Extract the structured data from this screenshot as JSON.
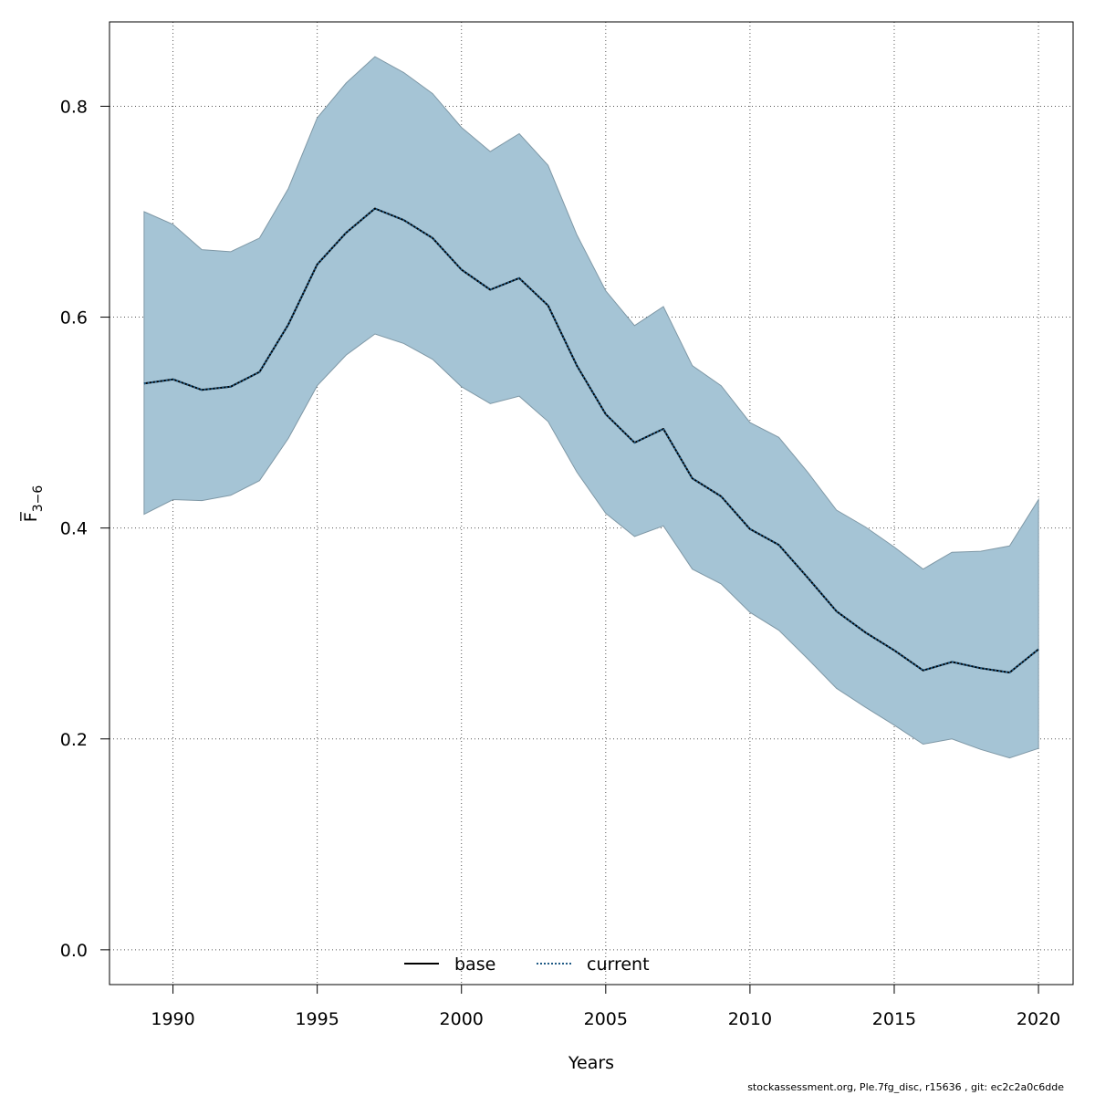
{
  "chart_data": {
    "type": "line",
    "xlabel": "Years",
    "ylabel": "F̅",
    "ylabel_subscript": "3−6",
    "xlim": [
      1987.8,
      2021.2
    ],
    "ylim": [
      -0.033,
      0.88
    ],
    "x_ticks": [
      1990,
      1995,
      2000,
      2005,
      2010,
      2015,
      2020
    ],
    "y_ticks": [
      0.0,
      0.2,
      0.4,
      0.6,
      0.8
    ],
    "y_tick_labels": [
      "0.0",
      "0.2",
      "0.4",
      "0.6",
      "0.8"
    ],
    "grid": true,
    "legend_position": "bottom",
    "legend": [
      {
        "label": "base",
        "style": "solid",
        "color": "#000000"
      },
      {
        "label": "current",
        "style": "dotted",
        "color": "#1f5a85"
      }
    ],
    "x": [
      1989,
      1990,
      1991,
      1992,
      1993,
      1994,
      1995,
      1996,
      1997,
      1998,
      1999,
      2000,
      2001,
      2002,
      2003,
      2004,
      2005,
      2006,
      2007,
      2008,
      2009,
      2010,
      2011,
      2012,
      2013,
      2014,
      2015,
      2016,
      2017,
      2018,
      2019,
      2020
    ],
    "series": [
      {
        "name": "current",
        "values": [
          0.537,
          0.541,
          0.531,
          0.534,
          0.548,
          0.593,
          0.65,
          0.68,
          0.703,
          0.692,
          0.675,
          0.645,
          0.626,
          0.637,
          0.611,
          0.554,
          0.508,
          0.481,
          0.494,
          0.447,
          0.43,
          0.399,
          0.384,
          0.353,
          0.321,
          0.301,
          0.284,
          0.265,
          0.273,
          0.267,
          0.263,
          0.285
        ]
      },
      {
        "name": "base",
        "values": [
          0.537,
          0.541,
          0.531,
          0.534,
          0.548,
          0.593,
          0.65,
          0.68,
          0.703,
          0.692,
          0.675,
          0.645,
          0.626,
          0.637,
          0.611,
          0.554,
          0.508,
          0.481,
          0.494,
          0.447,
          0.43,
          0.399,
          0.384,
          0.353,
          0.321,
          0.301,
          0.284,
          0.265,
          0.273,
          0.267,
          0.263,
          0.285
        ]
      }
    ],
    "band": {
      "lower": [
        0.413,
        0.427,
        0.426,
        0.431,
        0.445,
        0.485,
        0.535,
        0.564,
        0.584,
        0.575,
        0.56,
        0.534,
        0.518,
        0.525,
        0.501,
        0.453,
        0.414,
        0.392,
        0.402,
        0.361,
        0.347,
        0.32,
        0.303,
        0.276,
        0.248,
        0.23,
        0.213,
        0.195,
        0.2,
        0.19,
        0.182,
        0.191
      ],
      "upper": [
        0.7,
        0.688,
        0.664,
        0.662,
        0.675,
        0.722,
        0.789,
        0.822,
        0.847,
        0.832,
        0.812,
        0.78,
        0.757,
        0.774,
        0.744,
        0.678,
        0.625,
        0.592,
        0.61,
        0.554,
        0.535,
        0.5,
        0.486,
        0.453,
        0.417,
        0.401,
        0.382,
        0.361,
        0.377,
        0.378,
        0.383,
        0.427
      ],
      "fill": "#a5c4d5",
      "stroke": "#7f98a6"
    },
    "colors": {
      "current": "#1f5a85",
      "base": "#000000",
      "grid": "#555555",
      "axis": "#000000"
    }
  },
  "footer": "stockassessment.org, Ple.7fg_disc, r15636 , git: ec2c2a0c6dde"
}
